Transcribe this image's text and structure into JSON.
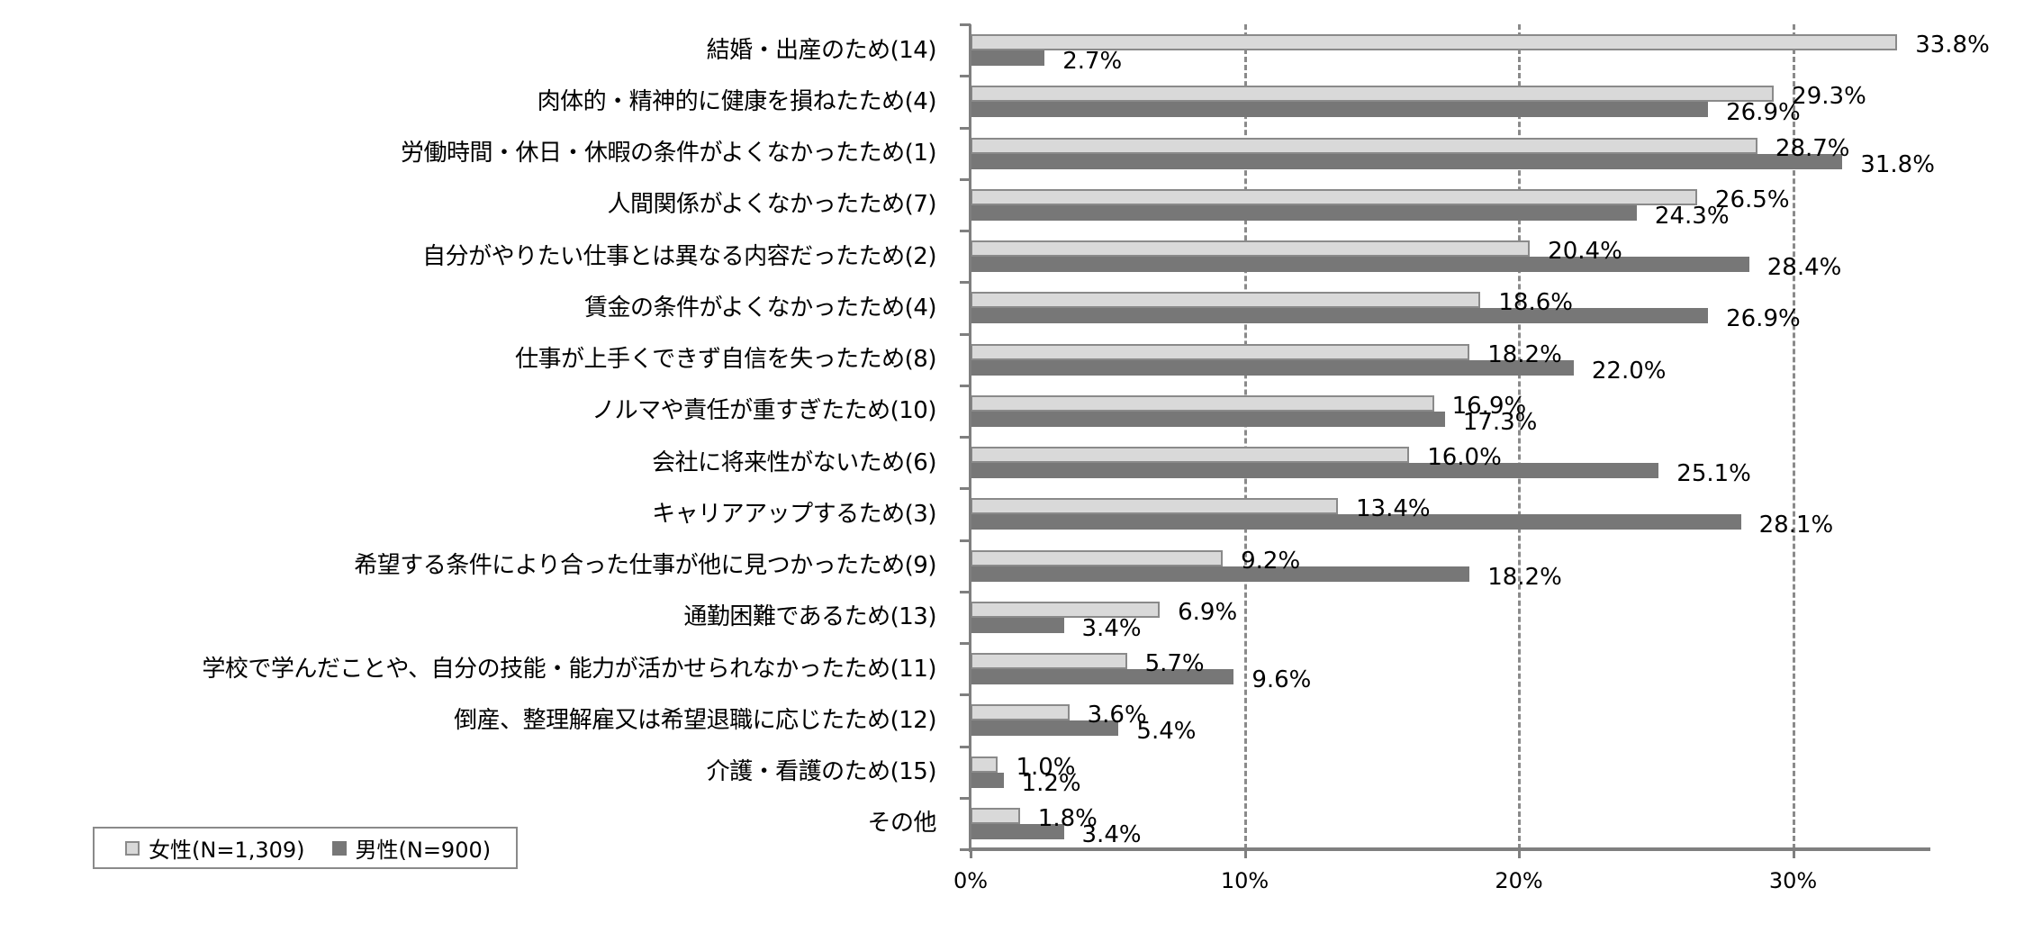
{
  "chart_data": {
    "type": "bar",
    "orientation": "horizontal",
    "title": "",
    "xlabel": "",
    "ylabel": "",
    "xlim": [
      0,
      35
    ],
    "x_ticks": [
      "0%",
      "10%",
      "20%",
      "30%"
    ],
    "grid": "vertical dashed at 10%, 20%, 30%",
    "legend_position": "bottom-left",
    "categories": [
      "結婚・出産のため(14)",
      "肉体的・精神的に健康を損ねたため(4)",
      "労働時間・休日・休暇の条件がよくなかったため(1)",
      "人間関係がよくなかったため(7)",
      "自分がやりたい仕事とは異なる内容だったため(2)",
      "賃金の条件がよくなかったため(4)",
      "仕事が上手くできず自信を失ったため(8)",
      "ノルマや責任が重すぎたため(10)",
      "会社に将来性がないため(6)",
      "キャリアアップするため(3)",
      "希望する条件により合った仕事が他に見つかったため(9)",
      "通勤困難であるため(13)",
      "学校で学んだことや、自分の技能・能力が活かせられなかったため(11)",
      "倒産、整理解雇又は希望退職に応じたため(12)",
      "介護・看護のため(15)",
      "その他"
    ],
    "series": [
      {
        "name": "女性(N=1,309)",
        "color": "#d9d9d9",
        "values": [
          33.8,
          29.3,
          28.7,
          26.5,
          20.4,
          18.6,
          18.2,
          16.9,
          16.0,
          13.4,
          9.2,
          6.9,
          5.7,
          3.6,
          1.0,
          1.8
        ]
      },
      {
        "name": "男性(N=900)",
        "color": "#777777",
        "values": [
          2.7,
          26.9,
          31.8,
          24.3,
          28.4,
          26.9,
          22.0,
          17.3,
          25.1,
          28.1,
          18.2,
          3.4,
          9.6,
          5.4,
          1.2,
          3.4
        ]
      }
    ],
    "value_labels": {
      "female": [
        "33.8%",
        "29.3%",
        "28.7%",
        "26.5%",
        "20.4%",
        "18.6%",
        "18.2%",
        "16.9%",
        "16.0%",
        "13.4%",
        "9.2%",
        "6.9%",
        "5.7%",
        "3.6%",
        "1.0%",
        "1.8%"
      ],
      "male": [
        "2.7%",
        "26.9%",
        "31.8%",
        "24.3%",
        "28.4%",
        "26.9%",
        "22.0%",
        "17.3%",
        "25.1%",
        "28.1%",
        "18.2%",
        "3.4%",
        "9.6%",
        "5.4%",
        "1.2%",
        "3.4%"
      ]
    }
  },
  "legend": {
    "female_label": "女性(N=1,309)",
    "male_label": "男性(N=900)"
  },
  "axis": {
    "tick_labels": [
      "0%",
      "10%",
      "20%",
      "30%"
    ]
  }
}
